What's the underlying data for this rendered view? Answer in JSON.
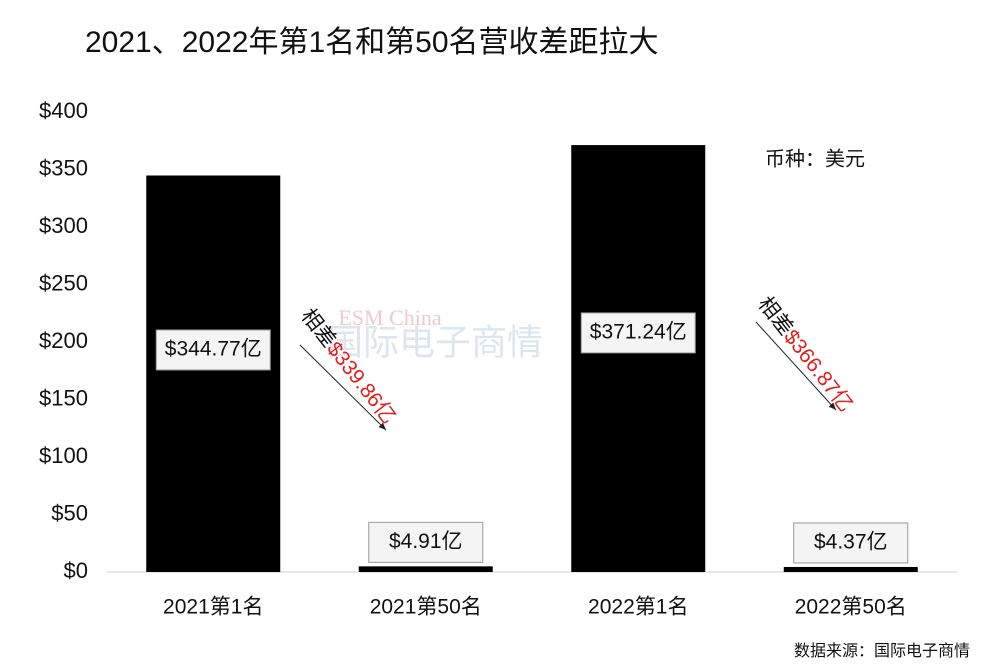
{
  "chart_data": {
    "type": "bar",
    "title": "2021、2022年第1名和第50名营收差距拉大",
    "categories": [
      "2021第1名",
      "2021第50名",
      "2022第1名",
      "2022第50名"
    ],
    "values": [
      344.77,
      4.91,
      371.24,
      4.37
    ],
    "value_labels": [
      "$344.77亿",
      "$4.91亿",
      "$371.24亿",
      "$4.37亿"
    ],
    "color": "#000000",
    "ylim": [
      0,
      400
    ],
    "yticks": [
      {
        "value": 0,
        "label": "$0"
      },
      {
        "value": 50,
        "label": "$50"
      },
      {
        "value": 100,
        "label": "$100"
      },
      {
        "value": 150,
        "label": "$150"
      },
      {
        "value": 200,
        "label": "$200"
      },
      {
        "value": 250,
        "label": "$250"
      },
      {
        "value": 300,
        "label": "$300"
      },
      {
        "value": 350,
        "label": "$350"
      },
      {
        "value": 400,
        "label": "$400"
      }
    ],
    "grid": false,
    "currency_note": "币种：美元",
    "source": "数据来源：国际电子商情",
    "watermark": [
      "ESM China",
      "国际电子商情"
    ],
    "annotations": [
      {
        "prefix": "相差",
        "text": "$339.86亿"
      },
      {
        "prefix": "相差",
        "text": "$366.87亿"
      }
    ]
  }
}
